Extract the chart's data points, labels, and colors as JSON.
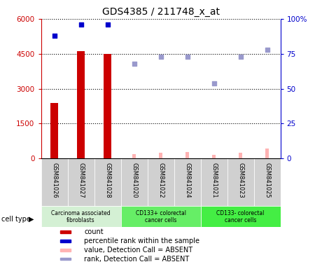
{
  "title": "GDS4385 / 211748_x_at",
  "samples": [
    "GSM841026",
    "GSM841027",
    "GSM841028",
    "GSM841020",
    "GSM841022",
    "GSM841024",
    "GSM841021",
    "GSM841023",
    "GSM841025"
  ],
  "count_values": [
    2400,
    4600,
    4500,
    0,
    0,
    0,
    0,
    0,
    0
  ],
  "absent_value_values": [
    0,
    0,
    0,
    200,
    260,
    270,
    150,
    240,
    430
  ],
  "percentile_rank": [
    88,
    96,
    96,
    null,
    null,
    null,
    null,
    null,
    null
  ],
  "absent_rank_values": [
    null,
    null,
    null,
    68,
    73,
    73,
    54,
    73,
    78
  ],
  "count_color": "#cc0000",
  "absent_value_color": "#ffb3b3",
  "percentile_rank_color": "#0000cc",
  "absent_rank_color": "#9999cc",
  "groups": [
    {
      "label": "Carcinoma associated\nfibroblasts",
      "start": 0,
      "end": 3,
      "color": "#d4f0d4"
    },
    {
      "label": "CD133+ colorectal\ncancer cells",
      "start": 3,
      "end": 6,
      "color": "#66ee66"
    },
    {
      "label": "CD133- colorectal\ncancer cells",
      "start": 6,
      "end": 9,
      "color": "#44ee44"
    }
  ],
  "cell_type_label": "cell type",
  "ylim_left": [
    0,
    6000
  ],
  "ylim_right": [
    0,
    100
  ],
  "yticks_left": [
    0,
    1500,
    3000,
    4500,
    6000
  ],
  "yticks_right": [
    0,
    25,
    50,
    75,
    100
  ],
  "legend_items": [
    {
      "label": "count",
      "color": "#cc0000"
    },
    {
      "label": "percentile rank within the sample",
      "color": "#0000cc"
    },
    {
      "label": "value, Detection Call = ABSENT",
      "color": "#ffb3b3"
    },
    {
      "label": "rank, Detection Call = ABSENT",
      "color": "#9999cc"
    }
  ],
  "bar_width": 0.3,
  "absent_bar_width": 0.12,
  "bg_color": "#ffffff",
  "tick_label_area_color": "#d0d0d0"
}
